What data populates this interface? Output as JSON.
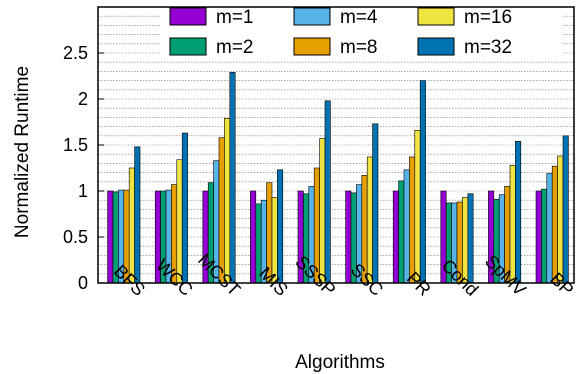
{
  "chart_data": {
    "type": "bar",
    "xlabel": "Algorithms",
    "ylabel": "Normalized Runtime",
    "ylim": [
      0,
      3
    ],
    "yticks": [
      0,
      0.5,
      1,
      1.5,
      2,
      2.5
    ],
    "grid": "horizontal dotted",
    "legend_position": "top",
    "categories": [
      "BFS",
      "WCC",
      "MCST",
      "MIS",
      "SSSP",
      "SSC",
      "PR",
      "Cond",
      "SpMV",
      "BP"
    ],
    "series": [
      {
        "name": "m=1",
        "color": "#9400d3",
        "values": [
          1.0,
          1.0,
          1.0,
          1.0,
          1.0,
          1.0,
          1.0,
          1.0,
          1.0,
          1.0
        ]
      },
      {
        "name": "m=2",
        "color": "#009e73",
        "values": [
          0.99,
          1.0,
          1.09,
          0.86,
          0.97,
          0.98,
          1.11,
          0.87,
          0.91,
          1.02
        ]
      },
      {
        "name": "m=4",
        "color": "#56b4e9",
        "values": [
          1.01,
          1.01,
          1.33,
          0.9,
          1.05,
          1.07,
          1.23,
          0.87,
          0.96,
          1.19
        ]
      },
      {
        "name": "m=8",
        "color": "#e69f00",
        "values": [
          1.01,
          1.07,
          1.58,
          1.09,
          1.25,
          1.17,
          1.37,
          0.88,
          1.05,
          1.27
        ]
      },
      {
        "name": "m=16",
        "color": "#f0e442",
        "values": [
          1.25,
          1.34,
          1.79,
          0.93,
          1.57,
          1.37,
          1.66,
          0.93,
          1.28,
          1.38
        ]
      },
      {
        "name": "m=32",
        "color": "#0072b2",
        "values": [
          1.48,
          1.63,
          2.29,
          1.23,
          1.98,
          1.73,
          2.2,
          0.97,
          1.54,
          1.6
        ]
      }
    ]
  }
}
